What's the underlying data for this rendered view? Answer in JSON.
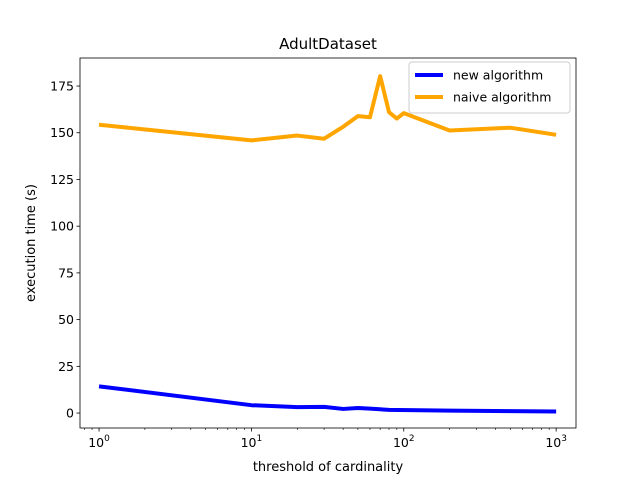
{
  "chart_data": {
    "type": "line",
    "title": "AdultDataset",
    "xlabel": "threshold of cardinality",
    "ylabel": "execution time (s)",
    "xscale": "log",
    "xlim": [
      0.75,
      1350
    ],
    "ylim": [
      -8,
      190
    ],
    "yticks": [
      0,
      25,
      50,
      75,
      100,
      125,
      150,
      175
    ],
    "xticks": [
      {
        "value": 1,
        "base": "10",
        "exp": "0"
      },
      {
        "value": 10,
        "base": "10",
        "exp": "1"
      },
      {
        "value": 100,
        "base": "10",
        "exp": "2"
      },
      {
        "value": 1000,
        "base": "10",
        "exp": "3"
      }
    ],
    "grid": false,
    "legend_position": "top-right",
    "series": [
      {
        "name": "new algorithm",
        "color": "#0000ff",
        "x": [
          1,
          10,
          20,
          30,
          40,
          50,
          60,
          80,
          200,
          500,
          1000
        ],
        "y": [
          14.3,
          4.2,
          3.2,
          3.3,
          2.2,
          2.7,
          2.4,
          1.7,
          1.3,
          1.0,
          0.8
        ]
      },
      {
        "name": "naive algorithm",
        "color": "#ffa500",
        "x": [
          1,
          10,
          20,
          30,
          40,
          50,
          60,
          70,
          80,
          90,
          100,
          200,
          500,
          1000
        ],
        "y": [
          154.3,
          145.9,
          148.5,
          146.8,
          153.2,
          158.9,
          158.3,
          180.3,
          161.0,
          157.6,
          160.5,
          151.2,
          152.7,
          148.9
        ]
      }
    ]
  }
}
